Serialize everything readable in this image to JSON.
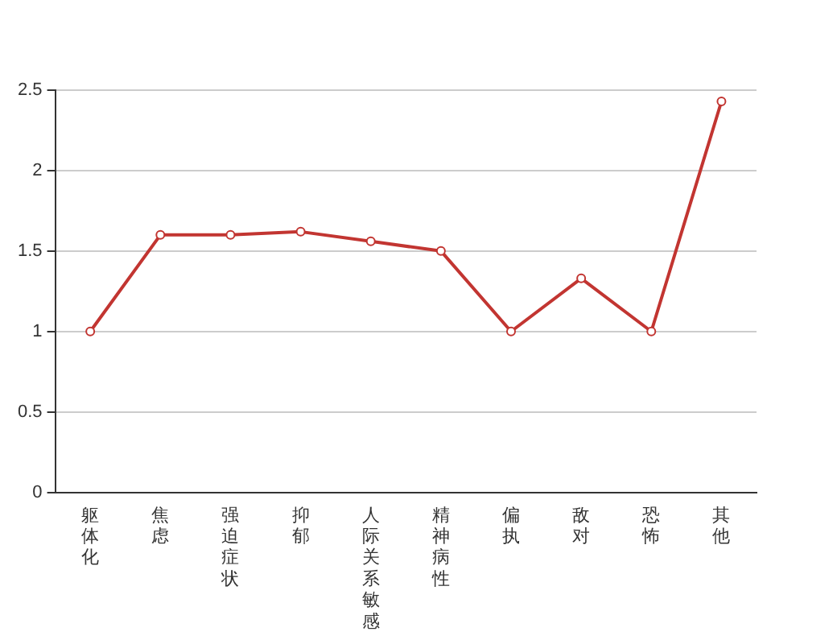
{
  "chart_data": {
    "type": "line",
    "categories": [
      "躯体化",
      "焦虑",
      "强迫症状",
      "抑郁",
      "人际关系敏感",
      "精神病性",
      "偏执",
      "敌对",
      "恐怖",
      "其他"
    ],
    "series": [
      {
        "color": "#c23531",
        "values": [
          1,
          1.6,
          1.6,
          1.62,
          1.56,
          1.5,
          1,
          1.33,
          1,
          2.43
        ]
      }
    ],
    "ylim": [
      0,
      2.5
    ],
    "yticks": [
      0,
      0.5,
      1,
      1.5,
      2,
      2.5
    ],
    "grid": "y",
    "marker": "circle",
    "line_style": "solid",
    "legend": false
  }
}
